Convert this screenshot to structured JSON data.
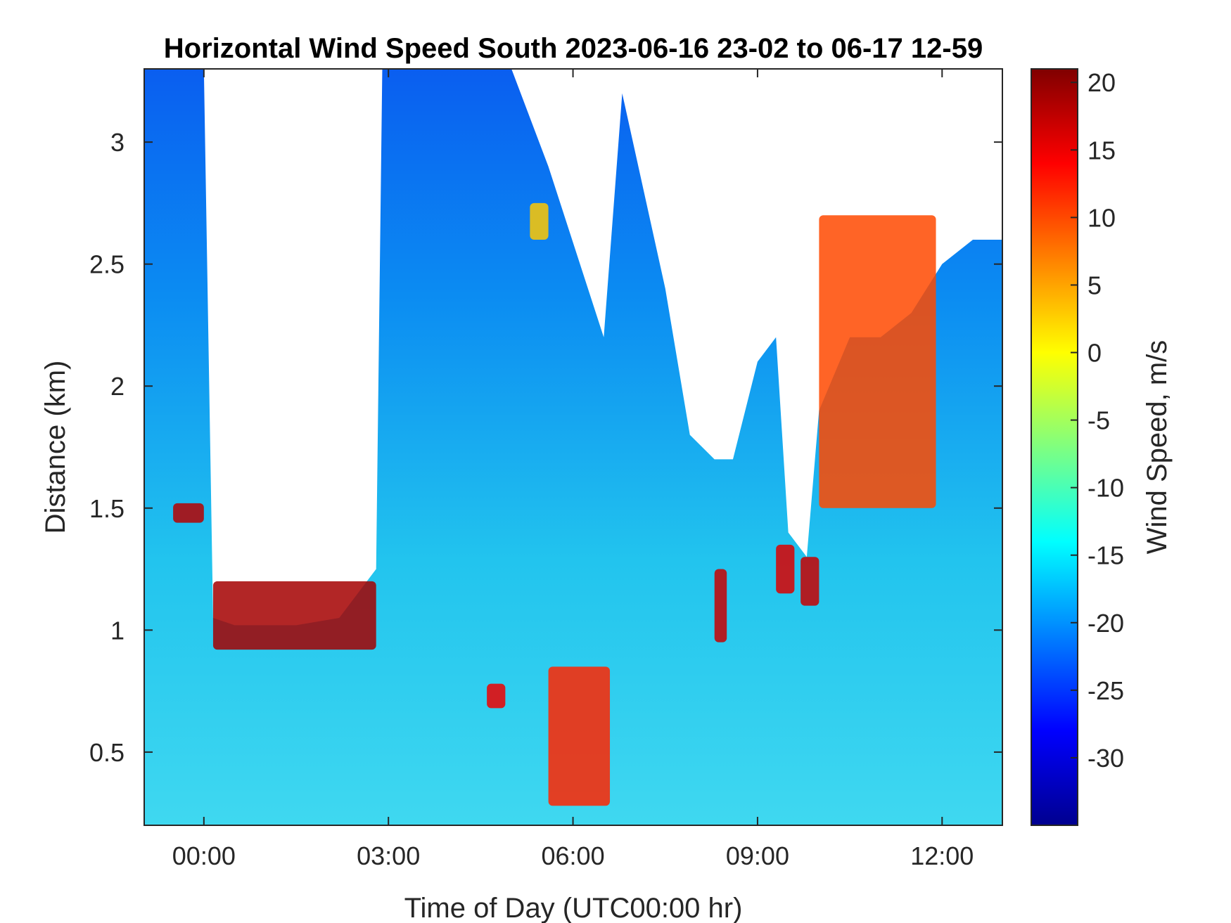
{
  "chart_data": {
    "type": "heatmap",
    "title": "Horizontal Wind Speed South 2023-06-16 23-02 to 06-17 12-59",
    "xlabel": "Time of Day (UTC00:00 hr)",
    "ylabel": "Distance (km)",
    "colorbar_label": "Wind Speed, m/s",
    "xlim": [
      -0.97,
      12.98
    ],
    "ylim": [
      0.2,
      3.3
    ],
    "clim": [
      -35,
      21
    ],
    "colormap": "jet",
    "x_ticks": [
      {
        "value": 0,
        "label": "00:00"
      },
      {
        "value": 3,
        "label": "03:00"
      },
      {
        "value": 6,
        "label": "06:00"
      },
      {
        "value": 9,
        "label": "09:00"
      },
      {
        "value": 12,
        "label": "12:00"
      }
    ],
    "y_ticks": [
      {
        "value": 0.5,
        "label": "0.5"
      },
      {
        "value": 1,
        "label": "1"
      },
      {
        "value": 1.5,
        "label": "1.5"
      },
      {
        "value": 2,
        "label": "2"
      },
      {
        "value": 2.5,
        "label": "2.5"
      },
      {
        "value": 3,
        "label": "3"
      }
    ],
    "colorbar_ticks": [
      {
        "value": 20,
        "label": "20"
      },
      {
        "value": 15,
        "label": "15"
      },
      {
        "value": 10,
        "label": "10"
      },
      {
        "value": 5,
        "label": "5"
      },
      {
        "value": 0,
        "label": "0"
      },
      {
        "value": -5,
        "label": "-5"
      },
      {
        "value": -10,
        "label": "-10"
      },
      {
        "value": -15,
        "label": "-15"
      },
      {
        "value": -20,
        "label": "-20"
      },
      {
        "value": -25,
        "label": "-25"
      },
      {
        "value": -30,
        "label": "-30"
      }
    ],
    "grid": false,
    "data_top_km": [
      [
        -0.97,
        3.3
      ],
      [
        -0.5,
        3.3
      ],
      [
        0.0,
        3.3
      ],
      [
        0.15,
        1.05
      ],
      [
        0.5,
        1.02
      ],
      [
        1.5,
        1.02
      ],
      [
        2.2,
        1.05
      ],
      [
        2.5,
        1.15
      ],
      [
        2.8,
        1.25
      ],
      [
        2.9,
        3.3
      ],
      [
        4.0,
        3.3
      ],
      [
        5.0,
        3.3
      ],
      [
        5.6,
        2.9
      ],
      [
        6.5,
        2.2
      ],
      [
        6.8,
        3.2
      ],
      [
        7.5,
        2.4
      ],
      [
        7.9,
        1.8
      ],
      [
        8.3,
        1.7
      ],
      [
        8.6,
        1.7
      ],
      [
        9.0,
        2.1
      ],
      [
        9.3,
        2.2
      ],
      [
        9.5,
        1.4
      ],
      [
        9.8,
        1.3
      ],
      [
        10.0,
        1.9
      ],
      [
        10.5,
        2.2
      ],
      [
        11.0,
        2.2
      ],
      [
        11.5,
        2.3
      ],
      [
        12.0,
        2.5
      ],
      [
        12.5,
        2.6
      ],
      [
        12.98,
        2.6
      ]
    ],
    "features": [
      {
        "x_start": -0.5,
        "x_end": 0.0,
        "y_start": 1.44,
        "y_end": 1.52,
        "value": 18
      },
      {
        "x_start": 0.15,
        "x_end": 2.8,
        "y_start": 0.92,
        "y_end": 1.2,
        "value": 19
      },
      {
        "x_start": 5.3,
        "x_end": 5.6,
        "y_start": 2.6,
        "y_end": 2.75,
        "value": 3
      },
      {
        "x_start": 4.6,
        "x_end": 4.9,
        "y_start": 0.68,
        "y_end": 0.78,
        "value": 15
      },
      {
        "x_start": 5.6,
        "x_end": 6.6,
        "y_start": 0.28,
        "y_end": 0.85,
        "value": 12
      },
      {
        "x_start": 8.3,
        "x_end": 8.5,
        "y_start": 0.95,
        "y_end": 1.25,
        "value": 17
      },
      {
        "x_start": 9.3,
        "x_end": 9.6,
        "y_start": 1.15,
        "y_end": 1.35,
        "value": 16
      },
      {
        "x_start": 9.7,
        "x_end": 10.0,
        "y_start": 1.1,
        "y_end": 1.3,
        "value": 17
      },
      {
        "x_start": 10.0,
        "x_end": 11.9,
        "y_start": 1.5,
        "y_end": 2.7,
        "value": 10
      }
    ]
  }
}
